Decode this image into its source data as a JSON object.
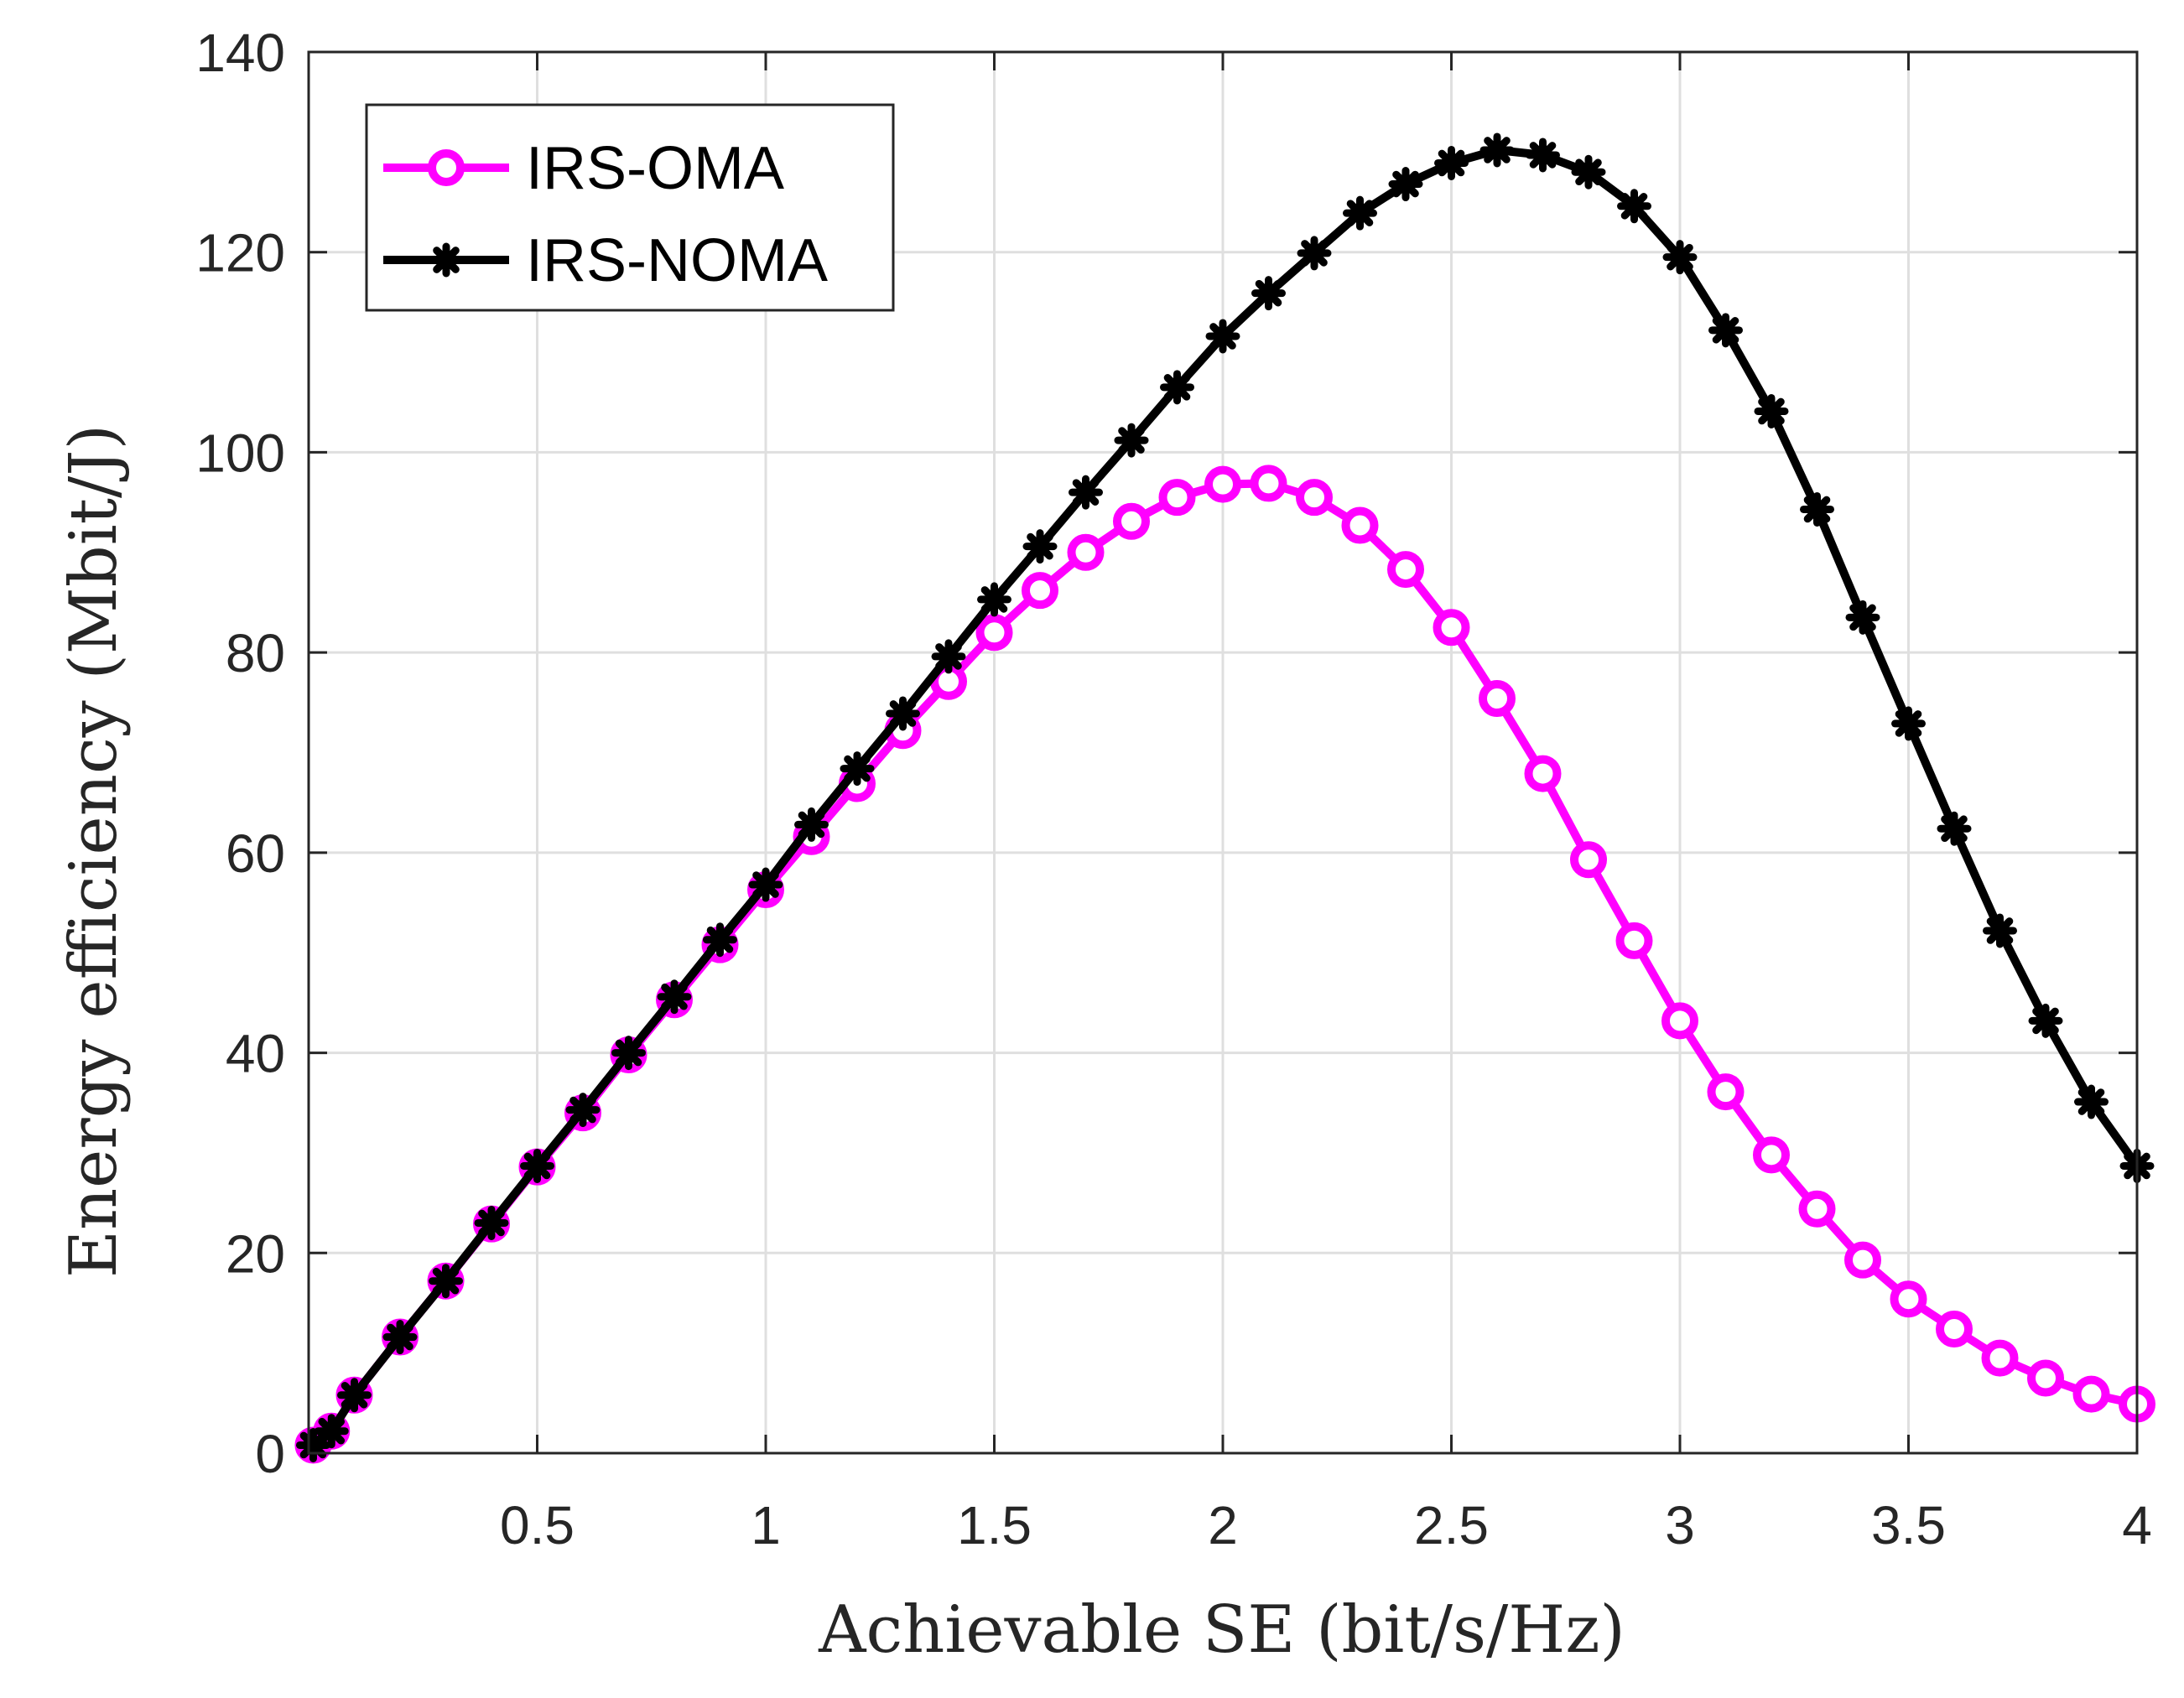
{
  "chart_data": {
    "type": "line",
    "title": "",
    "xlabel": "Achievable SE (bit/s/Hz)",
    "ylabel": "Energy efficiency (Mbit/J)",
    "xlim": [
      0,
      4
    ],
    "ylim": [
      0,
      140
    ],
    "xticks": [
      0.5,
      1,
      1.5,
      2,
      2.5,
      3,
      3.5,
      4
    ],
    "xtick_labels": [
      "0.5",
      "1",
      "1.5",
      "2",
      "2.5",
      "3",
      "3.5",
      "4"
    ],
    "yticks": [
      0,
      20,
      40,
      60,
      80,
      100,
      120,
      140
    ],
    "ytick_labels": [
      "0",
      "20",
      "40",
      "60",
      "80",
      "100",
      "120",
      "140"
    ],
    "grid": true,
    "legend_position": "top-left",
    "x": [
      0.01,
      0.05,
      0.1,
      0.2,
      0.3,
      0.4,
      0.5,
      0.6,
      0.7,
      0.8,
      0.9,
      1.0,
      1.1,
      1.2,
      1.3,
      1.4,
      1.5,
      1.6,
      1.7,
      1.8,
      1.9,
      2.0,
      2.1,
      2.2,
      2.3,
      2.4,
      2.5,
      2.6,
      2.7,
      2.8,
      2.9,
      3.0,
      3.1,
      3.2,
      3.3,
      3.4,
      3.5,
      3.6,
      3.7,
      3.8,
      3.9,
      4.0
    ],
    "series": [
      {
        "name": "IRS-OMA",
        "color": "#ff00ff",
        "marker": "circle",
        "values": [
          0.8,
          2.2,
          5.8,
          11.6,
          17.2,
          22.9,
          28.6,
          34.0,
          39.8,
          45.3,
          50.8,
          56.3,
          61.6,
          66.9,
          72.2,
          77.1,
          82.0,
          86.2,
          90.0,
          93.1,
          95.5,
          96.8,
          96.9,
          95.5,
          92.7,
          88.3,
          82.5,
          75.4,
          67.9,
          59.3,
          51.2,
          43.2,
          36.1,
          29.8,
          24.4,
          19.3,
          15.4,
          12.4,
          9.5,
          7.5,
          5.9,
          4.9
        ]
      },
      {
        "name": "IRS-NOMA",
        "color": "#000000",
        "marker": "asterisk",
        "values": [
          0.8,
          2.2,
          5.8,
          11.6,
          17.2,
          23.0,
          28.7,
          34.3,
          40.0,
          45.6,
          51.3,
          56.8,
          62.8,
          68.4,
          73.9,
          79.6,
          85.3,
          90.6,
          96.0,
          101.2,
          106.5,
          111.6,
          115.9,
          119.9,
          123.9,
          126.8,
          128.9,
          130.2,
          129.7,
          128.0,
          124.6,
          119.5,
          112.2,
          104.1,
          94.3,
          83.5,
          72.9,
          62.4,
          52.2,
          43.2,
          35.1,
          28.7
        ]
      }
    ]
  }
}
